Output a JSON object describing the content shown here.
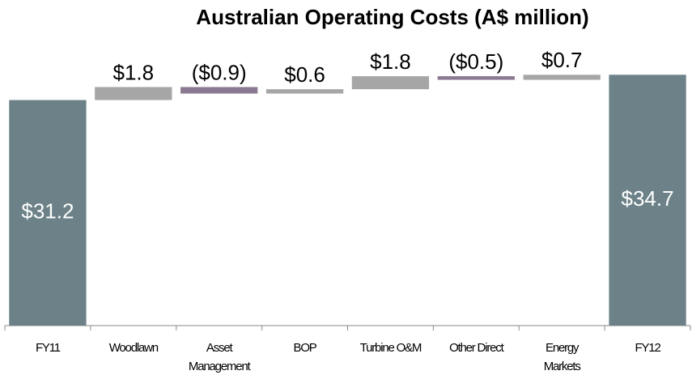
{
  "chart_data": {
    "type": "waterfall",
    "title": "Australian Operating Costs (A$ million)",
    "categories": [
      "FY11",
      "Woodlawn",
      "Asset\nManagement",
      "BOP",
      "Turbine O&M",
      "Other Direct",
      "Energy\nMarkets",
      "FY12"
    ],
    "values": [
      31.2,
      1.8,
      -0.9,
      0.6,
      1.8,
      -0.5,
      0.7,
      34.7
    ],
    "value_labels": [
      "$31.2",
      "$1.8",
      "($0.9)",
      "$0.6",
      "$1.8",
      "($0.5)",
      "$0.7",
      "$34.7"
    ],
    "measure": [
      "absolute",
      "relative",
      "relative",
      "relative",
      "relative",
      "relative",
      "relative",
      "total"
    ],
    "increasing_color": "#a6a6a6",
    "decreasing_color": "#8b7891",
    "total_color": "#6c8288",
    "ylim": [
      0,
      40
    ]
  }
}
